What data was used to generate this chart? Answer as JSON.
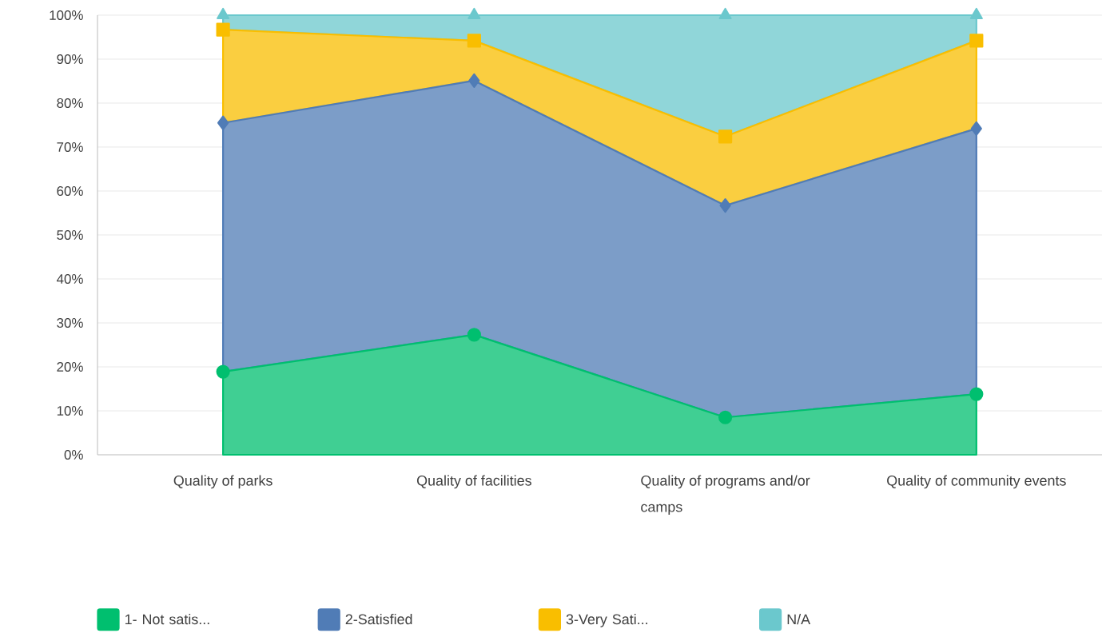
{
  "chart_data": {
    "type": "area",
    "stacked": true,
    "categories": [
      "Quality of  parks",
      "Quality of facilities",
      "Quality of programs and/or camps",
      "Quality of community events"
    ],
    "series": [
      {
        "name": "1- Not satis...",
        "color": "#00bf6f",
        "marker": "circle",
        "values": [
          18.9,
          27.3,
          8.5,
          13.8
        ]
      },
      {
        "name": "2-Satisfied",
        "color": "#507cb6",
        "marker": "diamond",
        "values": [
          56.6,
          57.8,
          48.2,
          60.4
        ]
      },
      {
        "name": "3-Very Sati...",
        "color": "#f9be00",
        "marker": "square",
        "values": [
          21.2,
          9.1,
          15.7,
          20.0
        ]
      },
      {
        "name": "N/A",
        "color": "#6bc8cd",
        "marker": "triangle",
        "values": [
          3.3,
          5.8,
          27.6,
          5.8
        ]
      }
    ],
    "ylim": [
      0,
      100
    ],
    "yticks": [
      {
        "value": 0,
        "label": "0%"
      },
      {
        "value": 10,
        "label": "10%"
      },
      {
        "value": 20,
        "label": "20%"
      },
      {
        "value": 30,
        "label": "30%"
      },
      {
        "value": 40,
        "label": "40%"
      },
      {
        "value": 50,
        "label": "50%"
      },
      {
        "value": 60,
        "label": "60%"
      },
      {
        "value": 70,
        "label": "70%"
      },
      {
        "value": 80,
        "label": "80%"
      },
      {
        "value": 90,
        "label": "90%"
      },
      {
        "value": 100,
        "label": "100%"
      }
    ],
    "grid": "y",
    "legend": "bottom"
  }
}
